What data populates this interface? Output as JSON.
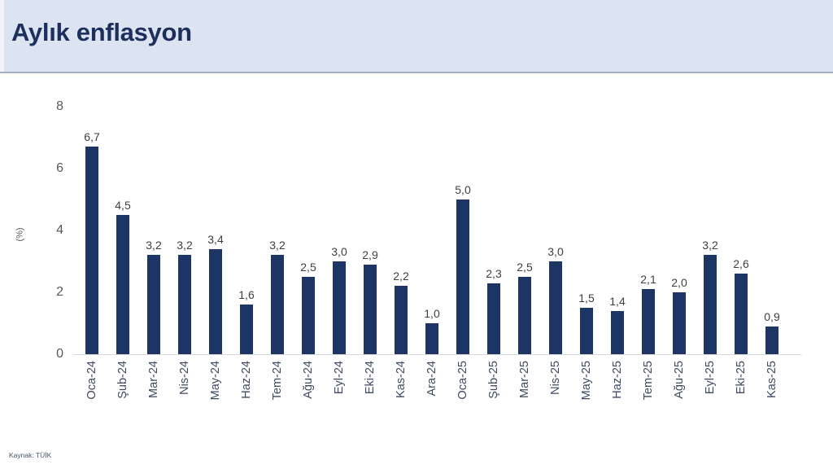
{
  "header": {
    "title": "Aylık enflasyon"
  },
  "footer": {
    "source": "Kaynak: TÜİK"
  },
  "chart_data": {
    "type": "bar",
    "title": "Aylık enflasyon",
    "xlabel": "",
    "ylabel": "(%)",
    "ylim": [
      0,
      8
    ],
    "yticks": [
      8,
      6,
      4,
      2,
      0
    ],
    "grid": false,
    "legend": "none",
    "bar_color": "#1d3565",
    "categories": [
      "Oca-24",
      "Şub-24",
      "Mar-24",
      "Nis-24",
      "May-24",
      "Haz-24",
      "Tem-24",
      "Ağu-24",
      "Eyl-24",
      "Eki-24",
      "Kas-24",
      "Ara-24",
      "Oca-25",
      "Şub-25",
      "Mar-25",
      "Nis-25",
      "May-25",
      "Haz-25",
      "Tem-25",
      "Ağu-25",
      "Eyl-25",
      "Eki-25",
      "Kas-25"
    ],
    "values": [
      6.7,
      4.5,
      3.2,
      3.2,
      3.4,
      1.6,
      3.2,
      2.5,
      3.0,
      2.9,
      2.2,
      1.0,
      5.0,
      2.3,
      2.5,
      3.0,
      1.5,
      1.4,
      2.1,
      2.0,
      3.2,
      2.6,
      0.9
    ],
    "value_labels": [
      "6,7",
      "4,5",
      "3,2",
      "3,2",
      "3,4",
      "1,6",
      "3,2",
      "2,5",
      "3,0",
      "2,9",
      "2,2",
      "1,0",
      "5,0",
      "2,3",
      "2,5",
      "3,0",
      "1,5",
      "1,4",
      "2,1",
      "2,0",
      "3,2",
      "2,6",
      "0,9"
    ]
  }
}
